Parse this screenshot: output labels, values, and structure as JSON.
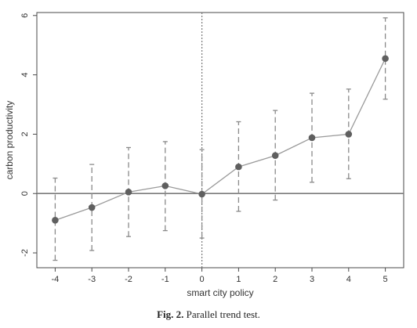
{
  "caption": {
    "label": "Fig. 2.",
    "text": "Parallel trend test."
  },
  "colors": {
    "axis": "#4a4a4a",
    "line": "#9a9a9a",
    "marker": "#5f5f5f",
    "ci": "#8a8a8a",
    "zero_line": "#7a7a7a",
    "event_line": "#777777"
  },
  "chart_data": {
    "type": "line",
    "title": "",
    "xlabel": "smart city policy",
    "ylabel": "carbon productivity",
    "x": [
      -4,
      -3,
      -2,
      -1,
      0,
      1,
      2,
      3,
      4,
      5
    ],
    "y": [
      -0.9,
      -0.47,
      0.05,
      0.26,
      -0.02,
      0.9,
      1.28,
      1.88,
      2.0,
      4.55
    ],
    "ci_lower": [
      -2.25,
      -1.92,
      -1.45,
      -1.25,
      -1.5,
      -0.6,
      -0.22,
      0.38,
      0.5,
      3.18
    ],
    "ci_upper": [
      0.52,
      0.98,
      1.55,
      1.75,
      1.48,
      2.42,
      2.8,
      3.38,
      3.52,
      5.92
    ],
    "xticks": [
      "-4",
      "-3",
      "-2",
      "-1",
      "0",
      "1",
      "2",
      "3",
      "4",
      "5"
    ],
    "yticks": [
      "-2",
      "0",
      "2",
      "4",
      "6"
    ],
    "xlim": [
      -4.5,
      5.5
    ],
    "ylim": [
      -2.5,
      6.1
    ],
    "reference_lines": {
      "horizontal_y": 0,
      "vertical_x": 0
    },
    "grid": false,
    "legend": "none"
  }
}
